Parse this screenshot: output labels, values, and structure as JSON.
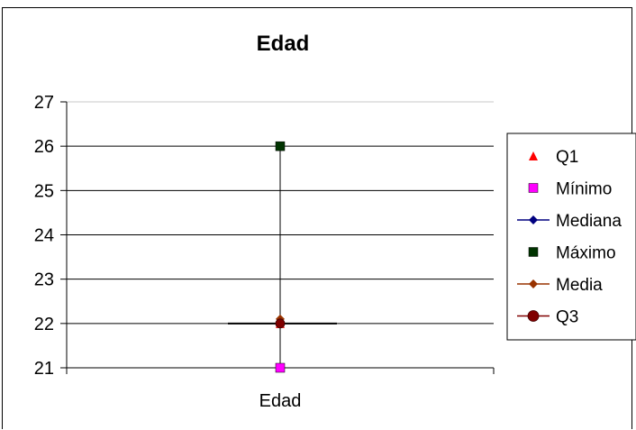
{
  "chart_data": {
    "type": "scatter",
    "title": "Edad",
    "categories": [
      "Edad"
    ],
    "ylim": [
      21,
      27
    ],
    "yticks": [
      21,
      22,
      23,
      24,
      25,
      26,
      27
    ],
    "grid": true,
    "legend_position": "right",
    "series": [
      {
        "name": "Q1",
        "values": [
          22
        ],
        "marker": "triangle",
        "color": "#FF0000",
        "line": false
      },
      {
        "name": "Mínimo",
        "values": [
          21
        ],
        "marker": "square",
        "color": "#FF00FF",
        "line": false
      },
      {
        "name": "Mediana",
        "values": [
          22
        ],
        "marker": "diamond",
        "color": "#000080",
        "line": true
      },
      {
        "name": "Máximo",
        "values": [
          26
        ],
        "marker": "square",
        "color": "#003300",
        "line": false
      },
      {
        "name": "Media",
        "values": [
          22.1
        ],
        "marker": "diamond",
        "color": "#993300",
        "line": true
      },
      {
        "name": "Q3",
        "values": [
          22
        ],
        "marker": "circle",
        "color": "#800000",
        "line": true
      }
    ]
  }
}
